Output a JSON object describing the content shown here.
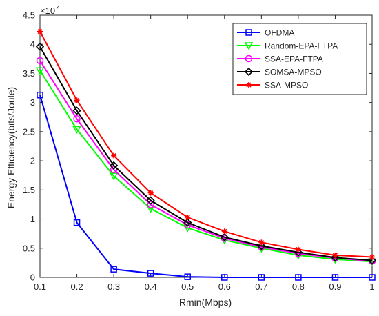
{
  "chart_data": {
    "type": "line",
    "title": "",
    "xlabel": "Rmin(Mbps)",
    "ylabel": "Energy Efficiency(bits/Joule)",
    "y_multiplier_label": "×10",
    "y_multiplier_exponent": "7",
    "xlim": [
      0.1,
      1
    ],
    "ylim": [
      0,
      4.5
    ],
    "x_ticks": [
      0.1,
      0.2,
      0.3,
      0.4,
      0.5,
      0.6,
      0.7,
      0.8,
      0.9,
      1
    ],
    "x_tick_labels": [
      "0.1",
      "0.2",
      "0.3",
      "0.4",
      "0.5",
      "0.6",
      "0.7",
      "0.8",
      "0.9",
      "1"
    ],
    "y_ticks": [
      0,
      0.5,
      1,
      1.5,
      2,
      2.5,
      3,
      3.5,
      4,
      4.5
    ],
    "y_tick_labels": [
      "0",
      "0.5",
      "1",
      "1.5",
      "2",
      "2.5",
      "3",
      "3.5",
      "4",
      "4.5"
    ],
    "grid": false,
    "legend_position": "top-right",
    "x": [
      0.1,
      0.2,
      0.3,
      0.4,
      0.5,
      0.6,
      0.7,
      0.8,
      0.9,
      1
    ],
    "series": [
      {
        "name": "OFDMA",
        "color": "#0000ff",
        "marker": "square",
        "values": [
          3.13,
          0.94,
          0.14,
          0.07,
          0.01,
          0.0,
          0.0,
          0.0,
          0.0,
          0.0
        ]
      },
      {
        "name": "Random-EPA-FTPA",
        "color": "#00ff00",
        "marker": "triangle-down",
        "values": [
          3.55,
          2.54,
          1.74,
          1.18,
          0.85,
          0.64,
          0.5,
          0.38,
          0.31,
          0.27
        ]
      },
      {
        "name": "SSA-EPA-FTPA",
        "color": "#ff00ff",
        "marker": "circle",
        "values": [
          3.72,
          2.72,
          1.85,
          1.25,
          0.9,
          0.67,
          0.52,
          0.41,
          0.33,
          0.28
        ]
      },
      {
        "name": "SOMSA-MPSO",
        "color": "#000000",
        "marker": "diamond",
        "values": [
          3.96,
          2.86,
          1.92,
          1.32,
          0.94,
          0.69,
          0.54,
          0.43,
          0.34,
          0.29
        ]
      },
      {
        "name": "SSA-MPSO",
        "color": "#ff0000",
        "marker": "asterisk",
        "values": [
          4.22,
          3.04,
          2.09,
          1.45,
          1.03,
          0.79,
          0.6,
          0.48,
          0.38,
          0.35
        ]
      }
    ]
  }
}
